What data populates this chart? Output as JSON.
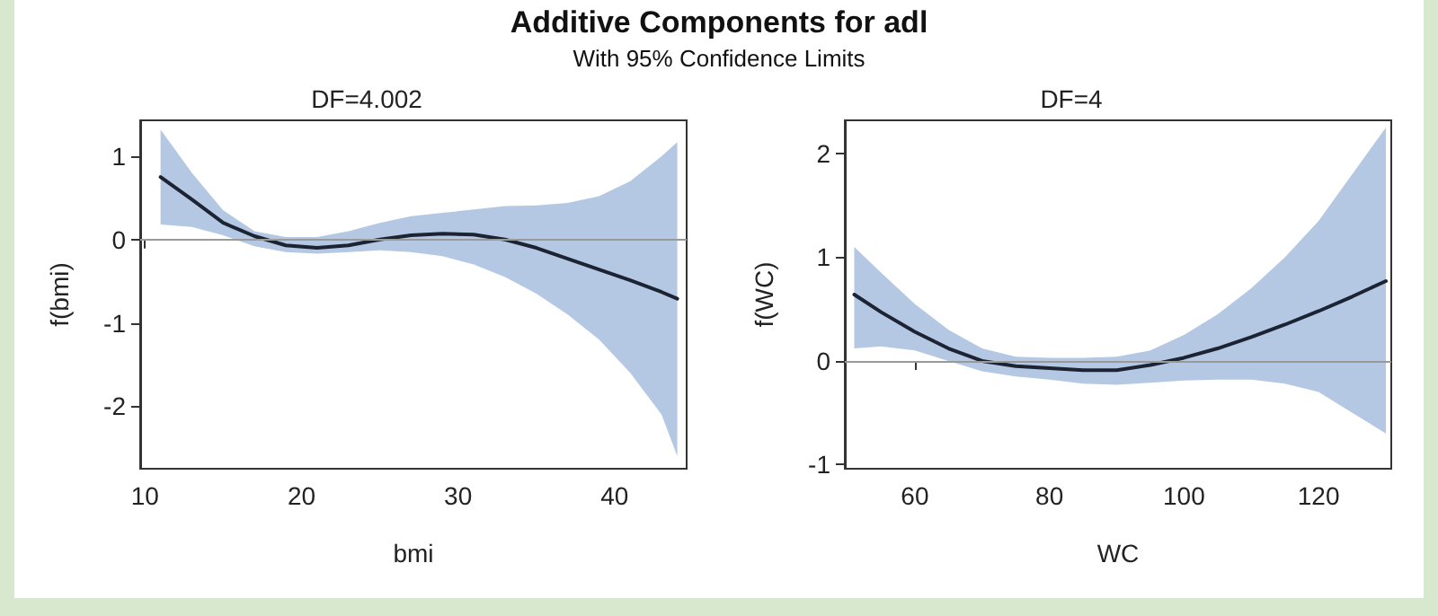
{
  "chart_data": [
    {
      "type": "line",
      "title": "DF=4.002",
      "annotations": [
        "Additive Components for adl",
        "With 95% Confidence Limits"
      ],
      "xlabel": "bmi",
      "ylabel": "f(bmi)",
      "xlim": [
        9.7,
        44.6
      ],
      "ylim": [
        -2.75,
        1.43
      ],
      "xticks": [
        10,
        20,
        30,
        40
      ],
      "yticks": [
        -2,
        -1,
        0,
        1
      ],
      "grid": false,
      "marker": "none",
      "line_style": "solid",
      "ref_lines": [
        {
          "axis": "y",
          "value": 0,
          "color": "#999999"
        }
      ],
      "series": [
        {
          "color": "#1c2333",
          "x": [
            11,
            13,
            15,
            17,
            19,
            21,
            23,
            25,
            27,
            29,
            31,
            33,
            35,
            37,
            39,
            41,
            43,
            44
          ],
          "values": [
            0.75,
            0.48,
            0.2,
            0.04,
            -0.07,
            -0.1,
            -0.07,
            0,
            0.05,
            0.07,
            0.06,
            0,
            -0.1,
            -0.23,
            -0.36,
            -0.49,
            -0.63,
            -0.71
          ],
          "lower": [
            0.18,
            0.15,
            0.05,
            -0.08,
            -0.15,
            -0.17,
            -0.15,
            -0.13,
            -0.15,
            -0.2,
            -0.3,
            -0.45,
            -0.65,
            -0.9,
            -1.2,
            -1.6,
            -2.1,
            -2.6
          ],
          "upper": [
            1.32,
            0.8,
            0.35,
            0.1,
            0.03,
            0.03,
            0.1,
            0.2,
            0.28,
            0.32,
            0.36,
            0.4,
            0.41,
            0.44,
            0.52,
            0.7,
            1.0,
            1.17
          ]
        }
      ]
    },
    {
      "type": "line",
      "title": "DF=4",
      "xlabel": "WC",
      "ylabel": "f(WC)",
      "xlim": [
        49.6,
        130.8
      ],
      "ylim": [
        -1.04,
        2.32
      ],
      "xticks": [
        60,
        80,
        100,
        120
      ],
      "yticks": [
        -1,
        0,
        1,
        2
      ],
      "grid": false,
      "marker": "none",
      "line_style": "solid",
      "ref_lines": [
        {
          "axis": "y",
          "value": 0,
          "color": "#999999"
        }
      ],
      "series": [
        {
          "color": "#1c2333",
          "x": [
            51,
            55,
            60,
            65,
            70,
            75,
            80,
            85,
            90,
            95,
            100,
            105,
            110,
            115,
            120,
            125,
            130
          ],
          "values": [
            0.64,
            0.47,
            0.28,
            0.12,
            0,
            -0.05,
            -0.07,
            -0.09,
            -0.09,
            -0.04,
            0.03,
            0.12,
            0.23,
            0.35,
            0.48,
            0.62,
            0.77
          ],
          "lower": [
            0.12,
            0.14,
            0.1,
            0,
            -0.1,
            -0.15,
            -0.18,
            -0.22,
            -0.23,
            -0.21,
            -0.19,
            -0.18,
            -0.18,
            -0.22,
            -0.3,
            -0.5,
            -0.7
          ],
          "upper": [
            1.1,
            0.85,
            0.55,
            0.3,
            0.12,
            0.04,
            0.03,
            0.03,
            0.04,
            0.1,
            0.25,
            0.45,
            0.7,
            1.0,
            1.35,
            1.8,
            2.25
          ]
        }
      ]
    }
  ]
}
